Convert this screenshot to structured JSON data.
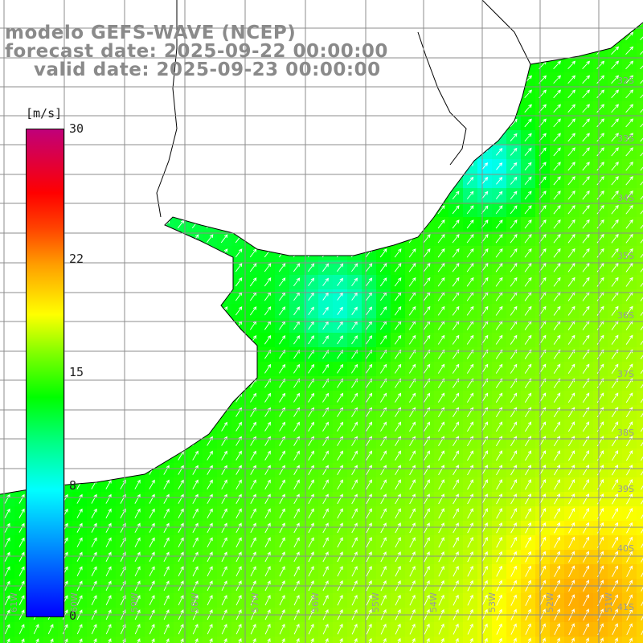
{
  "title": {
    "line1": "modelo GEFS-WAVE (NCEP)",
    "line2": "forecast date: 2025-09-22 00:00:00",
    "line3": "valid date: 2025-09-23 00:00:00"
  },
  "colorbar": {
    "units": "[m/s]",
    "ticks": [
      {
        "label": "30",
        "value": 30
      },
      {
        "label": "22",
        "value": 22
      },
      {
        "label": "15",
        "value": 15
      },
      {
        "label": "8",
        "value": 8
      },
      {
        "label": "0",
        "value": 0
      }
    ],
    "range": [
      0,
      30
    ],
    "colors": [
      "#0000ff",
      "#00ffff",
      "#00ff00",
      "#ffff00",
      "#ff0000",
      "#c0007a"
    ]
  },
  "map": {
    "lat_labels": [
      "32S",
      "33S",
      "34S",
      "35S",
      "36S",
      "37S",
      "38S",
      "39S",
      "40S",
      "41S"
    ],
    "lon_labels": [
      "61W",
      "60W",
      "59W",
      "58W",
      "57W",
      "56W",
      "55W",
      "54W",
      "53W",
      "52W",
      "51W"
    ],
    "field": "wind speed",
    "land_color": "#ffffff",
    "coast_color": "#000000"
  }
}
